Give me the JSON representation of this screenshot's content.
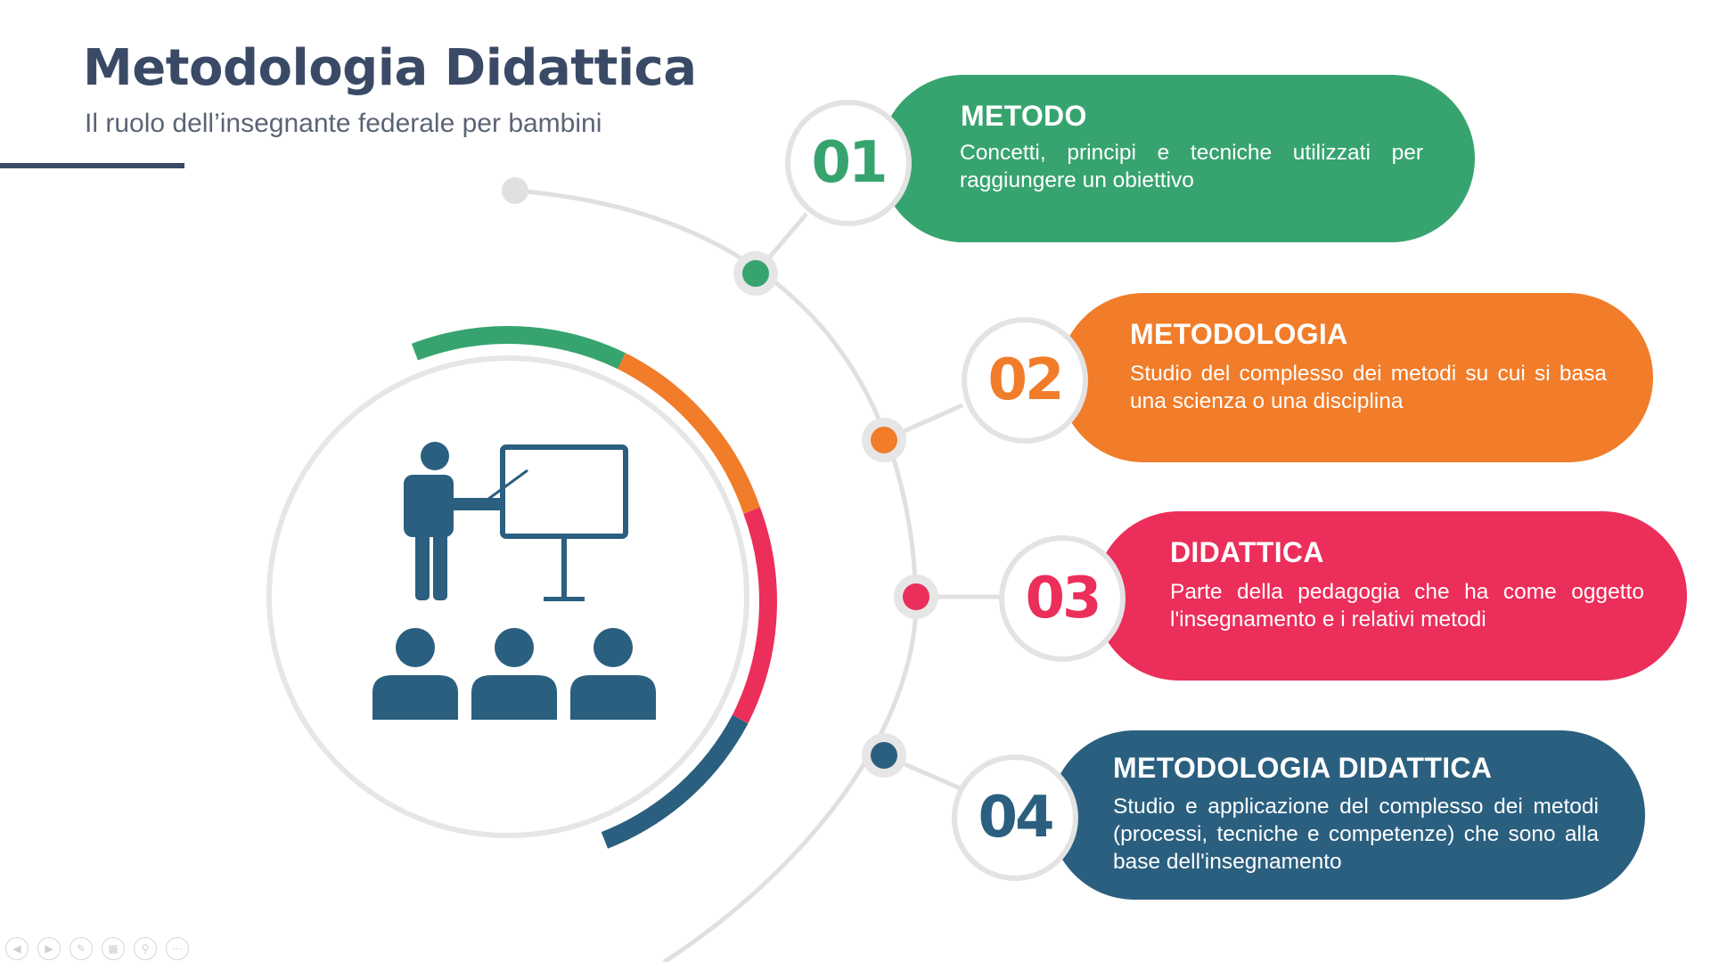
{
  "header": {
    "title": "Metodologia Didattica",
    "subtitle": "Il ruolo dell’insegnante federale per bambini"
  },
  "colors": {
    "green": "#37a46f",
    "orange": "#f17c29",
    "red": "#ec2e5a",
    "navy": "#2a5f7f",
    "title": "#3a4a66",
    "connector": "#e0e0e0"
  },
  "illustration": {
    "icon": "teacher-presenting-to-students-icon"
  },
  "steps": [
    {
      "number": "01",
      "heading": "METODO",
      "description": "Concetti, principi e tecniche utilizzati per raggiungere un obiettivo",
      "color": "#37a46f"
    },
    {
      "number": "02",
      "heading": "METODOLOGIA",
      "description": "Studio del complesso dei metodi su cui si basa una scienza o una disciplina",
      "color": "#f17c29"
    },
    {
      "number": "03",
      "heading": "DIDATTICA",
      "description": "Parte della pedagogia che ha come oggetto l'insegnamento e i relativi metodi",
      "color": "#ec2e5a"
    },
    {
      "number": "04",
      "heading": "METODOLOGIA DIDATTICA",
      "description": "Studio e applicazione del complesso dei metodi (processi, tecniche e competenze) che sono alla base dell'insegnamento",
      "color": "#2a5f7f"
    }
  ],
  "toolbar": {
    "icons": [
      "previous-icon",
      "next-icon",
      "pen-icon",
      "slides-icon",
      "zoom-icon",
      "more-icon"
    ]
  }
}
